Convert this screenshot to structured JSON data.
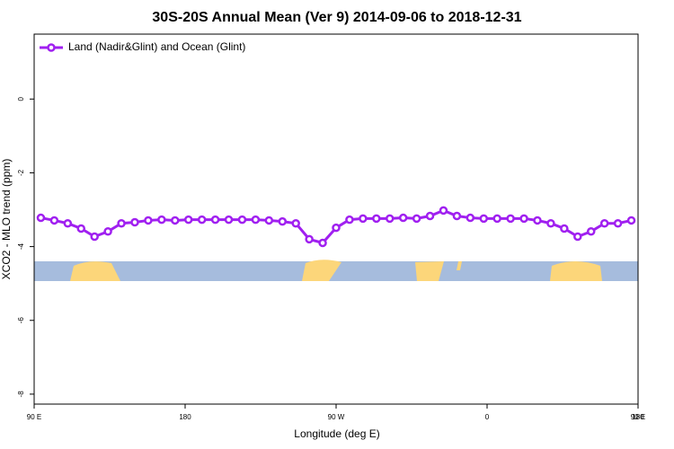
{
  "chart_data": {
    "type": "line",
    "title": "30S-20S Annual Mean (Ver 9)   2014-09-06 to 2018-12-31",
    "x_label": "Longitude (deg E)",
    "y_label": "XCO2 - MLO trend (ppm)",
    "x": [
      94,
      102,
      110,
      118,
      126,
      134,
      142,
      150,
      158,
      166,
      174,
      182,
      190,
      198,
      206,
      214,
      222,
      230,
      238,
      246,
      254,
      262,
      270,
      278,
      286,
      294,
      302,
      310,
      318,
      326,
      334,
      342,
      350,
      358,
      366,
      374,
      382,
      390,
      398,
      406,
      414,
      422,
      430,
      438,
      446
    ],
    "series": [
      {
        "name": "Land (Nadir&Glint) and Ocean (Glint)",
        "color": "#a020f0",
        "values": [
          -3.22,
          -3.29,
          -3.37,
          -3.51,
          -3.73,
          -3.59,
          -3.37,
          -3.34,
          -3.29,
          -3.27,
          -3.29,
          -3.27,
          -3.27,
          -3.27,
          -3.27,
          -3.27,
          -3.27,
          -3.29,
          -3.32,
          -3.37,
          -3.8,
          -3.9,
          -3.49,
          -3.27,
          -3.24,
          -3.24,
          -3.24,
          -3.22,
          -3.24,
          -3.17,
          -3.02,
          -3.17,
          -3.22,
          -3.24,
          -3.24,
          -3.24,
          -3.24,
          -3.29,
          -3.37,
          -3.51,
          -3.73,
          -3.59,
          -3.37,
          -3.37,
          -3.29
        ]
      }
    ],
    "xlim": [
      90,
      450
    ],
    "xticks": [
      {
        "value": 90,
        "label": "90 E"
      },
      180,
      {
        "value": 270,
        "label": "90 W"
      },
      {
        "value": 360,
        "label": "0"
      },
      {
        "value": 450,
        "label": "90 E"
      },
      {
        "value": 540,
        "label": "180"
      }
    ],
    "ylim": [
      -8.27,
      1.76
    ],
    "yticks": [
      0,
      -2,
      -4,
      -6,
      -8
    ],
    "legend": "top-left"
  }
}
